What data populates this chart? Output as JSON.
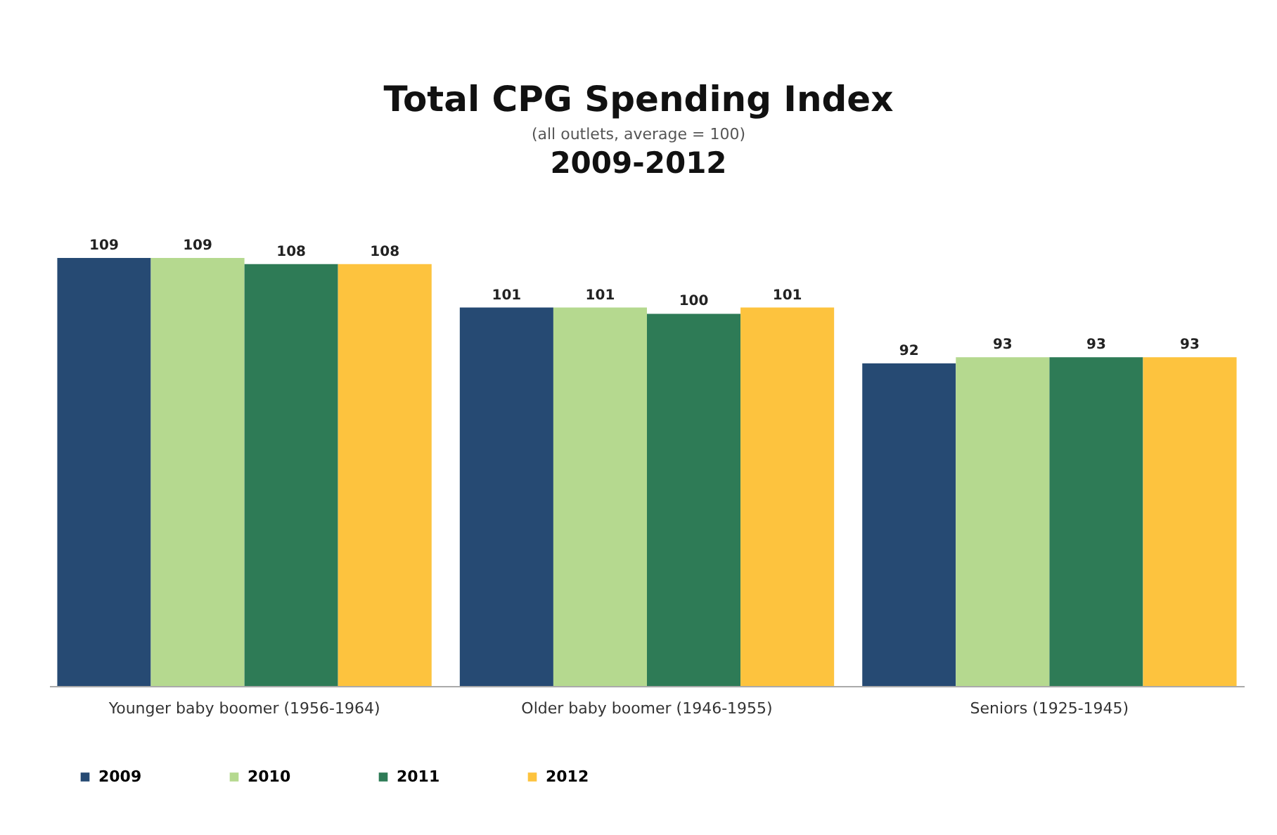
{
  "chart_data": {
    "type": "bar",
    "title": "Total CPG Spending Index",
    "subtitle": "(all outlets, average = 100)",
    "annotations": [
      "2009-2012"
    ],
    "categories": [
      "Younger baby boomer (1956-1964)",
      "Older baby boomer (1946-1955)",
      "Seniors (1925-1945)"
    ],
    "series": [
      {
        "name": "2009",
        "color": "#264a73",
        "values": [
          109,
          101,
          92
        ]
      },
      {
        "name": "2010",
        "color": "#b5d98f",
        "values": [
          109,
          101,
          93
        ]
      },
      {
        "name": "2011",
        "color": "#2e7b56",
        "values": [
          108,
          100,
          93
        ]
      },
      {
        "name": "2012",
        "color": "#fdc33e",
        "values": [
          108,
          101,
          93
        ]
      }
    ],
    "ylim": [
      40,
      115
    ],
    "data_labels": true,
    "legend": "bottom",
    "tick_labels": "x"
  }
}
